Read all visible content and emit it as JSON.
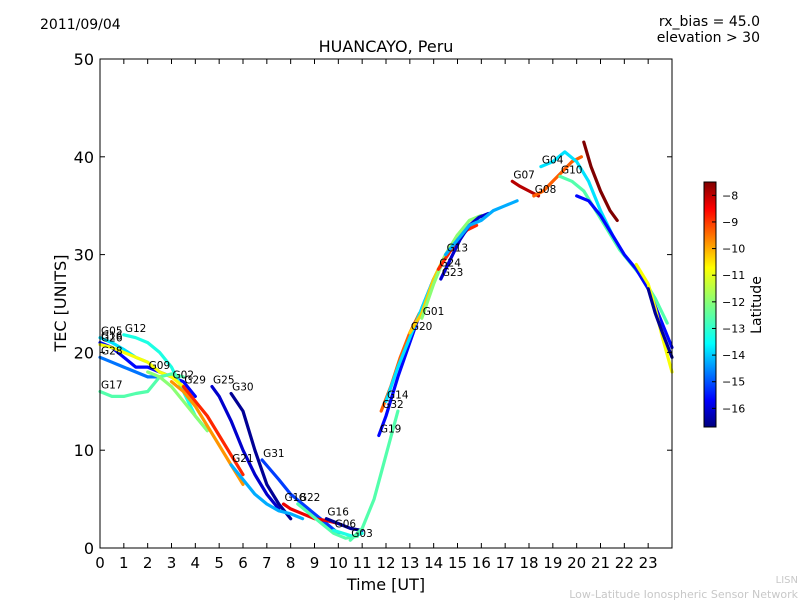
{
  "header": {
    "date": "2011/09/04",
    "rx_bias": "rx_bias = 45.0",
    "elevation": "elevation > 30"
  },
  "credits": {
    "line1": "LISN",
    "line2": "Low-Latitude Ionospheric Sensor Network"
  },
  "chart_data": {
    "type": "scatter",
    "title": "HUANCAYO, Peru",
    "xlabel": "Time [UT]",
    "ylabel": "TEC [UNITS]",
    "xlim": [
      0,
      24
    ],
    "ylim": [
      0,
      50
    ],
    "xticks": [
      "0",
      "1",
      "2",
      "3",
      "4",
      "5",
      "6",
      "7",
      "8",
      "9",
      "10",
      "11",
      "12",
      "13",
      "14",
      "15",
      "16",
      "17",
      "18",
      "19",
      "20",
      "21",
      "22",
      "23"
    ],
    "yticks": [
      "0",
      "10",
      "20",
      "30",
      "40",
      "50"
    ],
    "colorbar": {
      "label": "Latitude",
      "range": [
        -16.7,
        -7.5
      ],
      "ticks": [
        "-8",
        "-9",
        "-10",
        "-11",
        "-12",
        "-13",
        "-14",
        "-15",
        "-16"
      ],
      "colors": [
        "#00007f",
        "#0000ff",
        "#007fff",
        "#00ffff",
        "#7fff7f",
        "#ffff00",
        "#ff7f00",
        "#ff0000",
        "#7f0000"
      ]
    },
    "series": [
      {
        "name": "G05",
        "lat": -13.5,
        "x": [
          0.0,
          0.5,
          1.0,
          1.5,
          2.0
        ],
        "y": [
          21.5,
          21.0,
          20.3,
          19.5,
          19.0
        ]
      },
      {
        "name": "G16",
        "lat": -15.5,
        "x": [
          0.0,
          0.5,
          1.0,
          1.5,
          2.0,
          2.5,
          3.0,
          3.5,
          4.0
        ],
        "y": [
          21.0,
          20.5,
          19.5,
          18.5,
          18.5,
          18.0,
          17.5,
          17.0,
          15.5
        ]
      },
      {
        "name": "G12",
        "lat": -13.0,
        "x": [
          1.0,
          1.5,
          2.0,
          2.5,
          3.0,
          3.5,
          4.0,
          4.5
        ],
        "y": [
          21.8,
          21.5,
          21.0,
          20.0,
          18.5,
          16.0,
          13.5,
          12.0
        ]
      },
      {
        "name": "G26",
        "lat": -11.0,
        "x": [
          0.0,
          0.5,
          1.0,
          1.5,
          2.0,
          2.5,
          3.0,
          3.5
        ],
        "y": [
          20.8,
          20.5,
          20.0,
          19.5,
          19.0,
          18.0,
          17.5,
          16.5
        ]
      },
      {
        "name": "G28",
        "lat": -14.5,
        "x": [
          0.0,
          0.5,
          1.0,
          1.5,
          2.0,
          2.5
        ],
        "y": [
          19.5,
          19.0,
          18.5,
          18.0,
          17.5,
          17.5
        ]
      },
      {
        "name": "G17",
        "lat": -12.5,
        "x": [
          0.0,
          0.5,
          1.0,
          1.5,
          2.0,
          2.5,
          3.0,
          3.5
        ],
        "y": [
          16.0,
          15.5,
          15.5,
          15.8,
          16.0,
          17.5,
          17.8,
          17.5
        ]
      },
      {
        "name": "G09",
        "lat": -12.0,
        "x": [
          2.0,
          2.5,
          3.0,
          3.5,
          4.0,
          4.5
        ],
        "y": [
          18.0,
          17.5,
          16.5,
          15.0,
          13.5,
          12.0
        ]
      },
      {
        "name": "G02",
        "lat": -10.0,
        "x": [
          3.0,
          3.5,
          4.0,
          4.5,
          5.0,
          5.5,
          6.0
        ],
        "y": [
          17.0,
          16.0,
          14.5,
          12.5,
          10.5,
          8.5,
          6.5
        ]
      },
      {
        "name": "G29",
        "lat": -9.0,
        "x": [
          3.5,
          4.0,
          4.5,
          5.0,
          5.5,
          6.0
        ],
        "y": [
          16.5,
          15.0,
          13.5,
          11.5,
          9.5,
          7.5
        ]
      },
      {
        "name": "G25",
        "lat": -16.0,
        "x": [
          4.7,
          5.0,
          5.5,
          6.0,
          6.5,
          7.0,
          7.5
        ],
        "y": [
          16.5,
          15.5,
          13.0,
          10.0,
          7.5,
          5.5,
          4.0
        ]
      },
      {
        "name": "G30",
        "lat": -16.5,
        "x": [
          5.5,
          6.0,
          6.5,
          7.0,
          7.5,
          8.0
        ],
        "y": [
          15.8,
          14.0,
          10.0,
          6.5,
          4.5,
          3.0
        ]
      },
      {
        "name": "G21",
        "lat": -14.0,
        "x": [
          5.5,
          6.0,
          6.5,
          7.0,
          7.5,
          8.0,
          8.5
        ],
        "y": [
          8.5,
          7.0,
          5.5,
          4.5,
          3.8,
          3.5,
          3.0
        ]
      },
      {
        "name": "G31",
        "lat": -15.0,
        "x": [
          6.8,
          7.5,
          8.0,
          8.5,
          9.0,
          9.5,
          10.0
        ],
        "y": [
          9.0,
          7.0,
          5.5,
          4.5,
          3.5,
          2.5,
          1.5
        ]
      },
      {
        "name": "G18",
        "lat": -8.5,
        "x": [
          7.7,
          8.0,
          8.5,
          9.0,
          9.5,
          10.0
        ],
        "y": [
          4.5,
          4.0,
          3.5,
          3.0,
          2.8,
          2.5
        ]
      },
      {
        "name": "G22",
        "lat": -12.5,
        "x": [
          8.3,
          8.8,
          9.3,
          9.8,
          10.3,
          10.8
        ],
        "y": [
          4.5,
          3.5,
          2.5,
          1.5,
          1.0,
          1.2
        ]
      },
      {
        "name": "G16",
        "lat": -16.5,
        "x": [
          9.5,
          10.0,
          10.5,
          11.0
        ],
        "y": [
          3.0,
          2.5,
          2.0,
          1.8
        ]
      },
      {
        "name": "G06",
        "lat": -13.0,
        "x": [
          9.8,
          10.2,
          10.6,
          11.0
        ],
        "y": [
          1.8,
          1.5,
          1.2,
          1.5
        ]
      },
      {
        "name": "G03",
        "lat": -12.5,
        "x": [
          10.5,
          11.0,
          11.5,
          12.0,
          12.5
        ],
        "y": [
          0.8,
          2.0,
          5.0,
          9.5,
          14.0
        ]
      },
      {
        "name": "G19",
        "lat": -15.5,
        "x": [
          11.7,
          12.0,
          12.5,
          13.0,
          13.5,
          14.0
        ],
        "y": [
          11.5,
          13.5,
          17.5,
          21.0,
          24.5,
          27.5
        ]
      },
      {
        "name": "G32",
        "lat": -9.5,
        "x": [
          11.8,
          12.2,
          12.6,
          13.0,
          13.4
        ],
        "y": [
          14.0,
          16.5,
          19.5,
          22.0,
          24.0
        ]
      },
      {
        "name": "G14",
        "lat": -13.5,
        "x": [
          12.0,
          12.5,
          13.0,
          13.5,
          14.0,
          14.5
        ],
        "y": [
          15.0,
          18.5,
          21.5,
          24.5,
          27.5,
          30.0
        ]
      },
      {
        "name": "G20",
        "lat": -10.5,
        "x": [
          13.0,
          13.5,
          14.0,
          14.5,
          15.0,
          15.5
        ],
        "y": [
          22.0,
          24.0,
          27.5,
          30.0,
          32.0,
          33.0
        ]
      },
      {
        "name": "G01",
        "lat": -12.0,
        "x": [
          13.5,
          14.0,
          14.5,
          15.0,
          15.5,
          16.0
        ],
        "y": [
          23.5,
          27.0,
          30.0,
          32.0,
          33.5,
          34.0
        ]
      },
      {
        "name": "G24",
        "lat": -9.0,
        "x": [
          14.2,
          14.6,
          15.0,
          15.4,
          15.8
        ],
        "y": [
          28.5,
          30.0,
          31.5,
          32.5,
          33.0
        ]
      },
      {
        "name": "G23",
        "lat": -16.0,
        "x": [
          14.3,
          14.7,
          15.1,
          15.5,
          15.9,
          16.3
        ],
        "y": [
          27.5,
          29.5,
          31.5,
          33.0,
          33.8,
          34.2
        ]
      },
      {
        "name": "G13",
        "lat": -14.0,
        "x": [
          14.5,
          15.0,
          15.5,
          16.0,
          16.5,
          17.0,
          17.5
        ],
        "y": [
          30.0,
          31.5,
          33.0,
          33.5,
          34.5,
          35.0,
          35.5
        ]
      },
      {
        "name": "G07",
        "lat": -8.0,
        "x": [
          17.3,
          17.6,
          18.0,
          18.4
        ],
        "y": [
          37.5,
          37.0,
          36.5,
          36.0
        ]
      },
      {
        "name": "G08",
        "lat": -9.5,
        "x": [
          18.2,
          18.6,
          19.0,
          19.4,
          19.8,
          20.2
        ],
        "y": [
          36.0,
          36.5,
          37.5,
          38.5,
          39.5,
          40.0
        ]
      },
      {
        "name": "G04",
        "lat": -13.5,
        "x": [
          18.5,
          19.0,
          19.5,
          20.0,
          20.5,
          21.0,
          21.5
        ],
        "y": [
          39.0,
          39.5,
          40.5,
          39.5,
          37.5,
          34.5,
          32.0
        ]
      },
      {
        "name": "G10",
        "lat": -12.5,
        "x": [
          19.3,
          19.8,
          20.3,
          20.8,
          21.3,
          21.8,
          22.3,
          22.8,
          23.3,
          23.8
        ],
        "y": [
          38.0,
          37.5,
          36.5,
          34.5,
          32.5,
          30.5,
          29.0,
          27.5,
          25.5,
          23.0
        ]
      },
      {
        "name": "",
        "lat": -7.5,
        "x": [
          20.3,
          20.6,
          21.0,
          21.4,
          21.7
        ],
        "y": [
          41.5,
          39.0,
          36.5,
          34.5,
          33.5
        ]
      },
      {
        "name": "",
        "lat": -15.5,
        "x": [
          20.0,
          20.5,
          21.0,
          21.5,
          22.0,
          22.5,
          23.0,
          23.5,
          24.0
        ],
        "y": [
          36.0,
          35.5,
          34.0,
          32.0,
          30.0,
          28.5,
          26.5,
          23.5,
          20.5
        ]
      },
      {
        "name": "",
        "lat": -11.0,
        "x": [
          22.5,
          23.0,
          23.3,
          23.6,
          24.0
        ],
        "y": [
          29.0,
          27.0,
          24.5,
          21.5,
          18.0
        ]
      },
      {
        "name": "",
        "lat": -16.5,
        "x": [
          23.0,
          23.3,
          23.6,
          24.0
        ],
        "y": [
          26.5,
          24.0,
          22.0,
          19.5
        ]
      }
    ]
  }
}
